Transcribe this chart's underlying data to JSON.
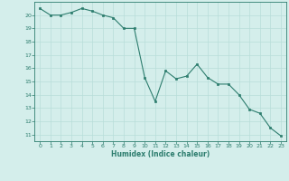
{
  "x": [
    0,
    1,
    2,
    3,
    4,
    5,
    6,
    7,
    8,
    9,
    10,
    11,
    12,
    13,
    14,
    15,
    16,
    17,
    18,
    19,
    20,
    21,
    22,
    23
  ],
  "y": [
    20.5,
    20.0,
    20.0,
    20.2,
    20.5,
    20.3,
    20.0,
    19.8,
    19.0,
    19.0,
    15.3,
    13.5,
    15.8,
    15.2,
    15.4,
    16.3,
    15.3,
    14.8,
    14.8,
    14.0,
    12.9,
    12.6,
    11.5,
    10.9
  ],
  "xlabel": "Humidex (Indice chaleur)",
  "ylim": [
    10.5,
    21.0
  ],
  "xlim": [
    -0.5,
    23.5
  ],
  "yticks": [
    11,
    12,
    13,
    14,
    15,
    16,
    17,
    18,
    19,
    20
  ],
  "xticks": [
    0,
    1,
    2,
    3,
    4,
    5,
    6,
    7,
    8,
    9,
    10,
    11,
    12,
    13,
    14,
    15,
    16,
    17,
    18,
    19,
    20,
    21,
    22,
    23
  ],
  "line_color": "#2d7d6e",
  "marker_color": "#2d7d6e",
  "bg_color": "#d4eeeb",
  "grid_color": "#b8ddd9",
  "axis_color": "#2d7d6e",
  "tick_color": "#2d7d6e",
  "label_color": "#2d7d6e"
}
